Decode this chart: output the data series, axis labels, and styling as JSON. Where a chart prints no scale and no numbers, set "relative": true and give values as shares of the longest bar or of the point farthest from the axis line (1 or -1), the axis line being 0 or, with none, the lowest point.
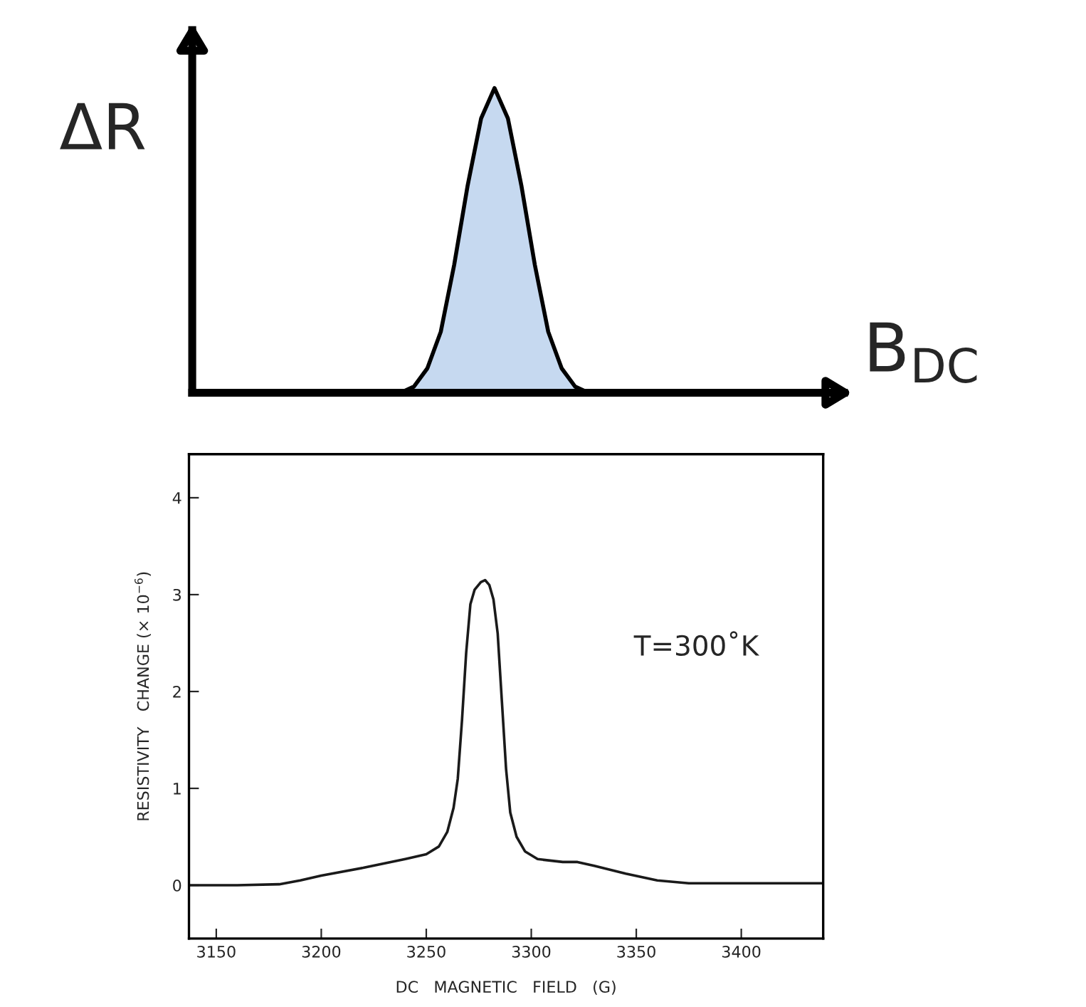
{
  "chart_data": [
    {
      "type": "area",
      "relative": true,
      "xlabel": "B$_{DC}$",
      "ylabel": "ΔR",
      "color": "#c6d9f0",
      "categories": [
        null,
        null,
        null,
        null,
        null,
        null,
        null,
        null,
        null,
        null,
        null,
        null,
        null,
        null,
        null,
        null,
        null,
        null,
        null,
        null,
        null,
        null,
        null,
        null,
        null,
        null,
        null,
        null,
        null,
        null,
        null,
        null,
        null,
        null,
        null,
        null,
        null,
        null,
        null,
        null,
        null,
        null,
        null,
        null,
        null,
        null,
        null,
        null,
        null
      ],
      "values": [
        0,
        0,
        0,
        0,
        0,
        0,
        0,
        0,
        0,
        0,
        0,
        0,
        0,
        0,
        0,
        0,
        0.02,
        0.08,
        0.2,
        0.42,
        0.68,
        0.9,
        1.0,
        0.9,
        0.68,
        0.42,
        0.2,
        0.08,
        0.02,
        0,
        0,
        0,
        0,
        0,
        0,
        0,
        0,
        0,
        0,
        0,
        0,
        0,
        0,
        0,
        0,
        0,
        0,
        0,
        0
      ]
    },
    {
      "type": "line",
      "xlabel": "DC   MAGNETIC   FIELD   (G)",
      "ylabel": "RESISTIVITY   CHANGE (× 10$^{−6}$)",
      "color": "#1a1a1a",
      "annotations": [
        "T=300˚K"
      ],
      "xlim": [
        3137,
        3439
      ],
      "ylim": [
        -0.55,
        4.45
      ],
      "xticks": [
        3150,
        3200,
        3250,
        3300,
        3350,
        3400
      ],
      "yticks": [
        0,
        1,
        2,
        3,
        4
      ],
      "x": [
        3137,
        3160,
        3180,
        3190,
        3200,
        3220,
        3240,
        3250,
        3256,
        3260,
        3263,
        3265,
        3267,
        3269,
        3271,
        3273,
        3276,
        3278,
        3280,
        3282,
        3284,
        3286,
        3288,
        3290,
        3293,
        3297,
        3303,
        3315,
        3322,
        3330,
        3345,
        3360,
        3375,
        3400,
        3439
      ],
      "values": [
        0,
        0,
        0.01,
        0.05,
        0.1,
        0.18,
        0.27,
        0.32,
        0.4,
        0.55,
        0.8,
        1.1,
        1.7,
        2.4,
        2.9,
        3.05,
        3.13,
        3.15,
        3.1,
        2.95,
        2.6,
        1.9,
        1.2,
        0.75,
        0.5,
        0.35,
        0.27,
        0.24,
        0.24,
        0.2,
        0.12,
        0.05,
        0.02,
        0.02,
        0.02
      ]
    }
  ]
}
